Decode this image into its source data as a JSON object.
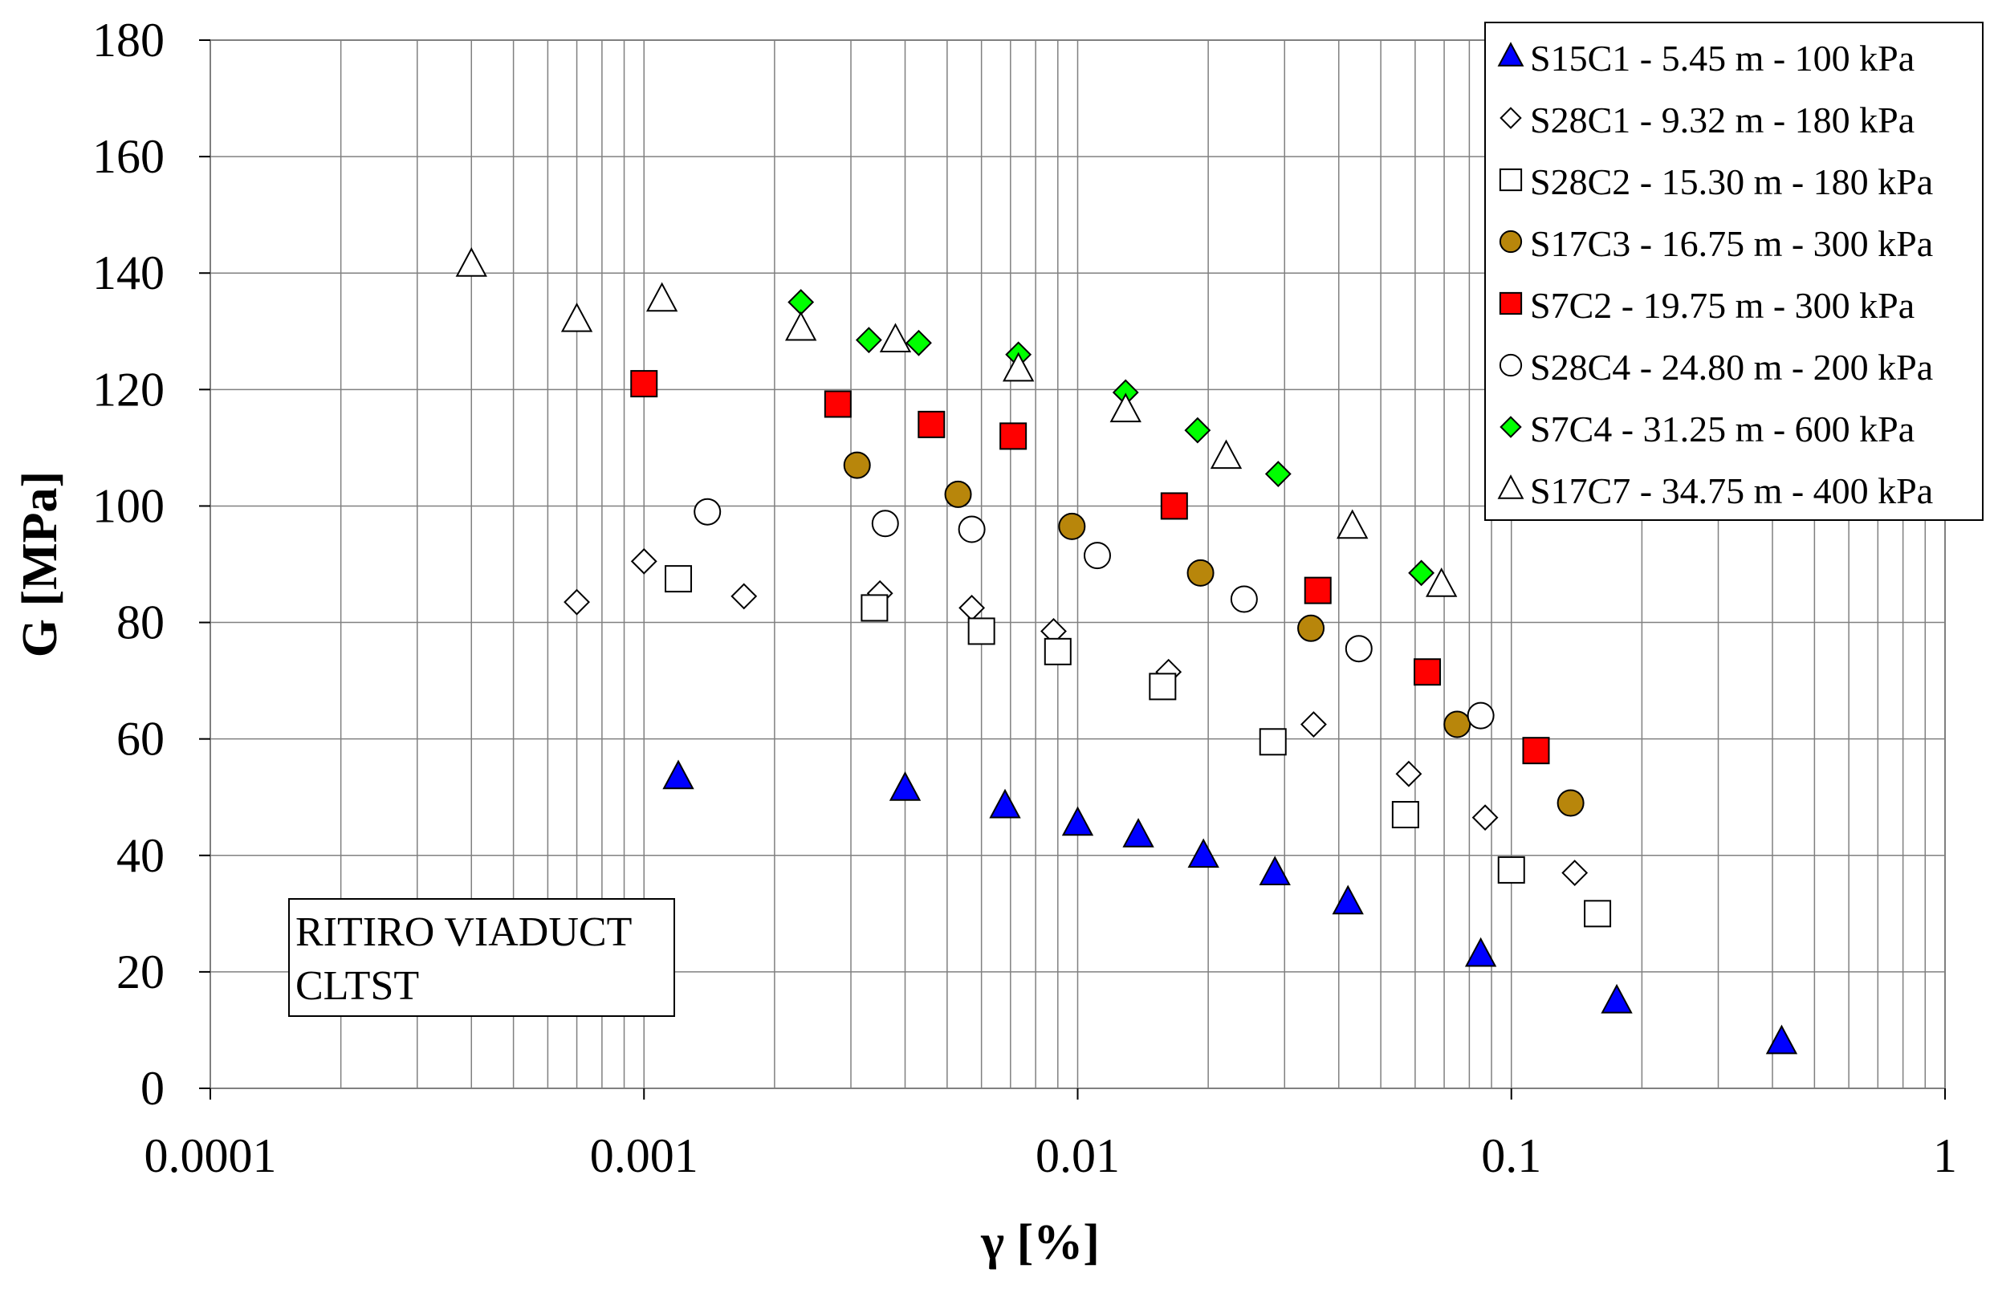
{
  "chart_data": {
    "type": "scatter",
    "xscale": "log",
    "xlim": [
      0.0001,
      1
    ],
    "ylim": [
      0,
      180
    ],
    "xlabel": "γ [%]",
    "ylabel": "G [MPa]",
    "xticks": [
      {
        "value": 0.0001,
        "label": "0.0001"
      },
      {
        "value": 0.001,
        "label": "0.001"
      },
      {
        "value": 0.01,
        "label": "0.01"
      },
      {
        "value": 0.1,
        "label": "0.1"
      },
      {
        "value": 1,
        "label": "1"
      }
    ],
    "yticks": [
      {
        "value": 0,
        "label": "0"
      },
      {
        "value": 20,
        "label": "20"
      },
      {
        "value": 40,
        "label": "40"
      },
      {
        "value": 60,
        "label": "60"
      },
      {
        "value": 80,
        "label": "80"
      },
      {
        "value": 100,
        "label": "100"
      },
      {
        "value": 120,
        "label": "120"
      },
      {
        "value": 140,
        "label": "140"
      },
      {
        "value": 160,
        "label": "160"
      },
      {
        "value": 180,
        "label": "180"
      }
    ],
    "grid": true,
    "legend_position": "top-right",
    "annotation": [
      "RITIRO VIADUCT",
      "CLTST"
    ],
    "series": [
      {
        "name": "S15C1 - 5.45 m - 100 kPa",
        "marker": "triangle",
        "fill": "#0000ff",
        "x": [
          0.0012,
          0.004,
          0.0068,
          0.01,
          0.0138,
          0.0195,
          0.0285,
          0.042,
          0.085,
          0.175,
          0.42
        ],
        "y": [
          53.5,
          51.5,
          48.5,
          45.5,
          43.5,
          40,
          37,
          32,
          23,
          15,
          8
        ]
      },
      {
        "name": "S28C1 - 9.32 m - 180 kPa",
        "marker": "diamond",
        "fill": "#ffffff",
        "x": [
          0.0007,
          0.001,
          0.0017,
          0.0035,
          0.0057,
          0.0088,
          0.0162,
          0.035,
          0.058,
          0.087,
          0.14
        ],
        "y": [
          83.5,
          90.5,
          84.5,
          85,
          82.5,
          78.5,
          71.5,
          62.5,
          54,
          46.5,
          37
        ]
      },
      {
        "name": "S28C2 - 15.30 m - 180 kPa",
        "marker": "square",
        "fill": "#ffffff",
        "x": [
          0.0012,
          0.0034,
          0.006,
          0.009,
          0.0157,
          0.0282,
          0.057,
          0.1,
          0.158
        ],
        "y": [
          87.5,
          82.5,
          78.5,
          75,
          69,
          59.5,
          47,
          37.5,
          30
        ]
      },
      {
        "name": "S17C3 - 16.75 m - 300 kPa",
        "marker": "circle",
        "fill": "#b8860b",
        "x": [
          0.0031,
          0.0053,
          0.0097,
          0.0192,
          0.0345,
          0.075,
          0.137
        ],
        "y": [
          107,
          102,
          96.5,
          88.5,
          79,
          62.5,
          49
        ]
      },
      {
        "name": "S7C2 - 19.75 m - 300 kPa",
        "marker": "square",
        "fill": "#ff0000",
        "x": [
          0.001,
          0.0028,
          0.0046,
          0.0071,
          0.0167,
          0.0358,
          0.064,
          0.114
        ],
        "y": [
          121,
          117.5,
          114,
          112,
          100,
          85.5,
          71.5,
          58
        ]
      },
      {
        "name": "S28C4 - 24.80 m - 200 kPa",
        "marker": "circle",
        "fill": "#ffffff",
        "x": [
          0.0014,
          0.0036,
          0.0057,
          0.0111,
          0.0242,
          0.0445,
          0.085
        ],
        "y": [
          99,
          97,
          96,
          91.5,
          84,
          75.5,
          64
        ]
      },
      {
        "name": "S7C4 - 31.25 m - 600 kPa",
        "marker": "diamond",
        "fill": "#00ff00",
        "x": [
          0.0023,
          0.0033,
          0.0043,
          0.0073,
          0.0129,
          0.0189,
          0.029,
          0.062
        ],
        "y": [
          135,
          128.5,
          128,
          126,
          119.5,
          113,
          105.5,
          88.5
        ]
      },
      {
        "name": "S17C7 - 34.75 m - 400 kPa",
        "marker": "triangle",
        "fill": "#ffffff",
        "x": [
          0.0004,
          0.0007,
          0.0011,
          0.0023,
          0.0038,
          0.0073,
          0.0129,
          0.022,
          0.043,
          0.069
        ],
        "y": [
          141.5,
          132,
          135.5,
          130.5,
          128.5,
          123.5,
          116.5,
          108.5,
          96.5,
          86.5
        ]
      }
    ]
  }
}
